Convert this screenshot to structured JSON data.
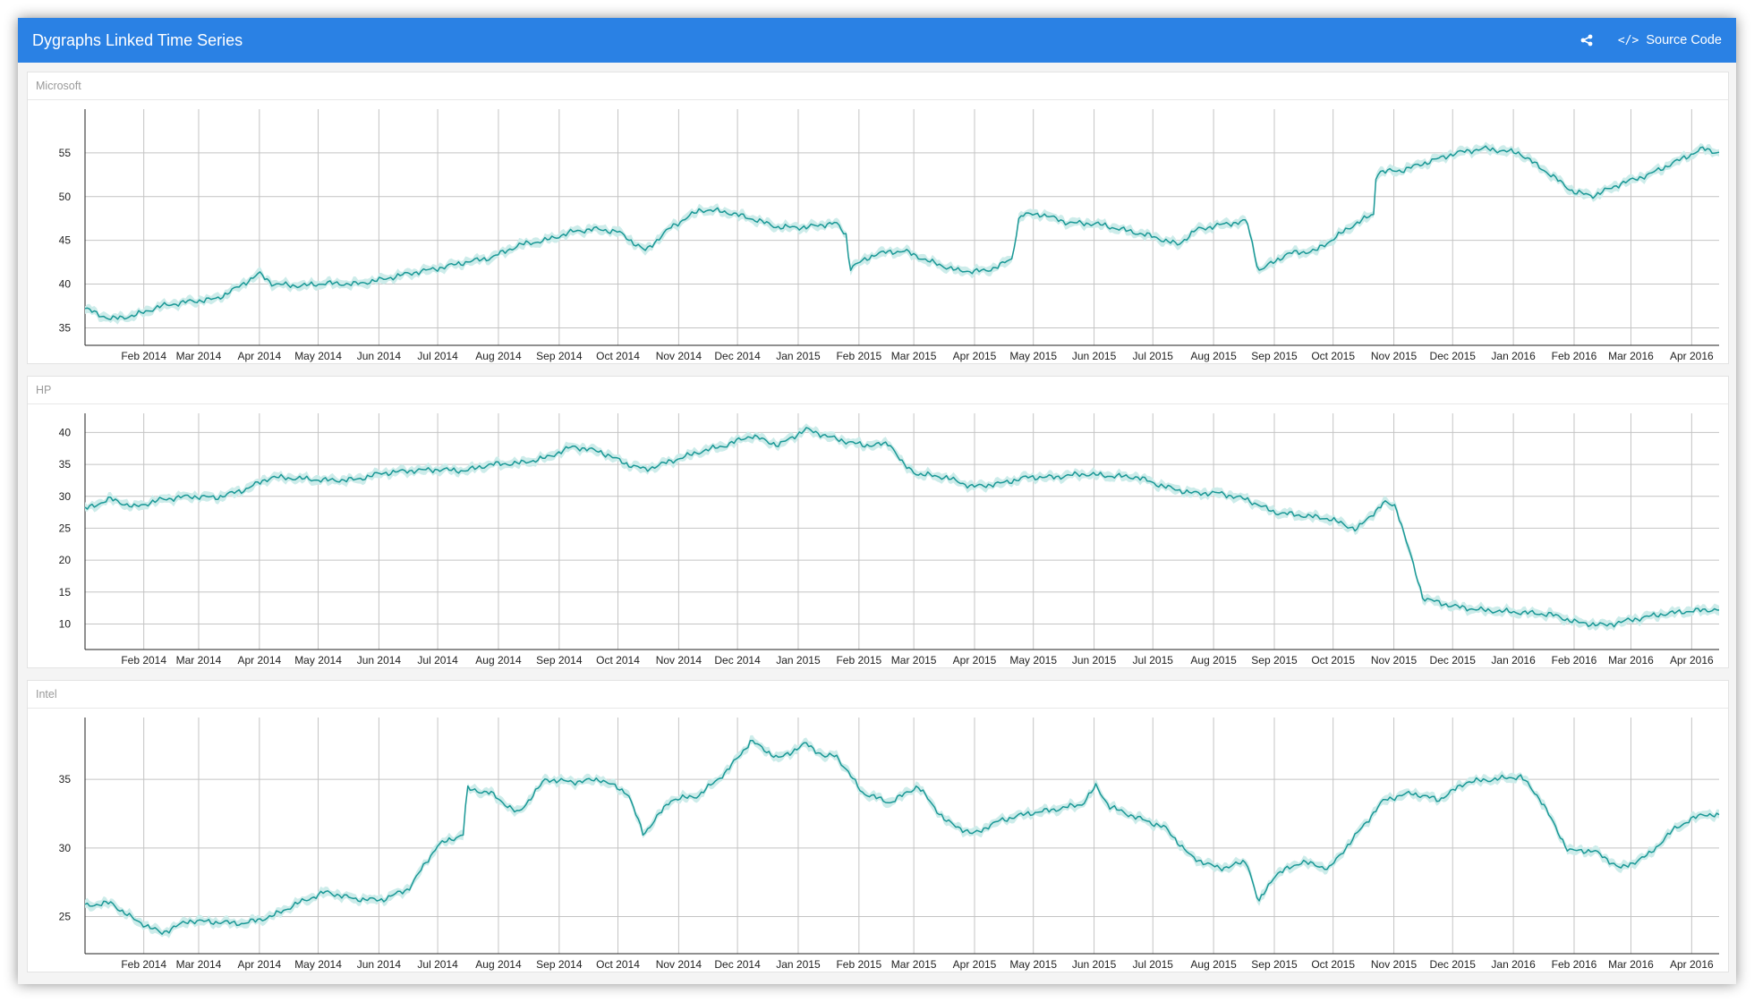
{
  "header": {
    "title": "Dygraphs Linked Time Series",
    "share_icon": "share-icon",
    "source_code_label": "Source Code"
  },
  "colors": {
    "navbar": "#2a81e4",
    "series": "#1a9896",
    "band": "#cdecea"
  },
  "chart_data": [
    {
      "type": "line",
      "title": "Microsoft",
      "xlabel": "",
      "ylabel": "",
      "x_tick_labels": [
        "Feb 2014",
        "Mar 2014",
        "Apr 2014",
        "May 2014",
        "Jun 2014",
        "Jul 2014",
        "Aug 2014",
        "Sep 2014",
        "Oct 2014",
        "Nov 2014",
        "Dec 2014",
        "Jan 2015",
        "Feb 2015",
        "Mar 2015",
        "Apr 2015",
        "May 2015",
        "Jun 2015",
        "Jul 2015",
        "Aug 2015",
        "Sep 2015",
        "Oct 2015",
        "Nov 2015",
        "Dec 2015",
        "Jan 2016",
        "Feb 2016",
        "Mar 2016",
        "Apr 2016"
      ],
      "xlim": [
        "2014-01-02",
        "2016-04-15"
      ],
      "ylim": [
        33,
        60
      ],
      "y_ticks": [
        35,
        40,
        45,
        50,
        55
      ],
      "grid": true,
      "series": [
        {
          "x": [
            "2014-01-02",
            "2014-01-15",
            "2014-01-27",
            "2014-02-10",
            "2014-02-24",
            "2014-03-10",
            "2014-03-20",
            "2014-04-01",
            "2014-04-08",
            "2014-04-22",
            "2014-05-05",
            "2014-05-20",
            "2014-06-02",
            "2014-06-16",
            "2014-07-01",
            "2014-07-15",
            "2014-07-28",
            "2014-08-12",
            "2014-08-25",
            "2014-09-08",
            "2014-09-19",
            "2014-10-01",
            "2014-10-15",
            "2014-10-28",
            "2014-11-12",
            "2014-11-24",
            "2014-12-08",
            "2014-12-22",
            "2015-01-05",
            "2015-01-20",
            "2015-01-26",
            "2015-01-27",
            "2015-02-10",
            "2015-02-24",
            "2015-03-10",
            "2015-03-24",
            "2015-04-07",
            "2015-04-20",
            "2015-04-24",
            "2015-05-05",
            "2015-05-19",
            "2015-06-02",
            "2015-06-16",
            "2015-06-30",
            "2015-07-14",
            "2015-07-23",
            "2015-08-05",
            "2015-08-18",
            "2015-08-24",
            "2015-09-08",
            "2015-09-22",
            "2015-10-13",
            "2015-10-22",
            "2015-10-23",
            "2015-11-05",
            "2015-11-19",
            "2015-12-03",
            "2015-12-17",
            "2016-01-04",
            "2016-01-20",
            "2016-02-01",
            "2016-02-11",
            "2016-02-25",
            "2016-03-10",
            "2016-03-24",
            "2016-04-07",
            "2016-04-15"
          ],
          "values": [
            37.2,
            36.0,
            36.4,
            37.5,
            38.0,
            38.3,
            39.5,
            41.2,
            40.0,
            39.8,
            40.1,
            40.0,
            40.5,
            41.2,
            41.8,
            42.5,
            43.0,
            44.5,
            45.0,
            46.0,
            46.3,
            46.0,
            43.8,
            46.5,
            48.5,
            48.3,
            47.5,
            46.5,
            46.5,
            47.0,
            45.5,
            41.8,
            43.5,
            43.8,
            42.5,
            41.5,
            41.5,
            42.8,
            47.9,
            48.0,
            47.0,
            46.9,
            46.2,
            45.5,
            44.5,
            46.2,
            46.8,
            47.2,
            41.5,
            43.5,
            43.8,
            47.0,
            48.0,
            52.8,
            53.0,
            54.0,
            55.0,
            55.5,
            55.0,
            52.5,
            50.5,
            50.1,
            51.5,
            52.5,
            54.0,
            55.5,
            55.0
          ]
        }
      ]
    },
    {
      "type": "line",
      "title": "HP",
      "xlabel": "",
      "ylabel": "",
      "x_tick_labels": [
        "Feb 2014",
        "Mar 2014",
        "Apr 2014",
        "May 2014",
        "Jun 2014",
        "Jul 2014",
        "Aug 2014",
        "Sep 2014",
        "Oct 2014",
        "Nov 2014",
        "Dec 2014",
        "Jan 2015",
        "Feb 2015",
        "Mar 2015",
        "Apr 2015",
        "May 2015",
        "Jun 2015",
        "Jul 2015",
        "Aug 2015",
        "Sep 2015",
        "Oct 2015",
        "Nov 2015",
        "Dec 2015",
        "Jan 2016",
        "Feb 2016",
        "Mar 2016",
        "Apr 2016"
      ],
      "xlim": [
        "2014-01-02",
        "2016-04-15"
      ],
      "ylim": [
        6,
        43
      ],
      "y_ticks": [
        10,
        15,
        20,
        25,
        30,
        35,
        40
      ],
      "grid": true,
      "series": [
        {
          "x": [
            "2014-01-02",
            "2014-01-15",
            "2014-01-27",
            "2014-02-10",
            "2014-02-24",
            "2014-03-10",
            "2014-03-24",
            "2014-04-07",
            "2014-04-21",
            "2014-05-05",
            "2014-05-20",
            "2014-06-02",
            "2014-06-16",
            "2014-07-01",
            "2014-07-15",
            "2014-07-28",
            "2014-08-12",
            "2014-08-25",
            "2014-09-08",
            "2014-09-22",
            "2014-10-06",
            "2014-10-15",
            "2014-10-28",
            "2014-11-12",
            "2014-11-25",
            "2014-12-08",
            "2014-12-22",
            "2015-01-05",
            "2015-01-20",
            "2015-02-03",
            "2015-02-17",
            "2015-02-24",
            "2015-03-03",
            "2015-03-17",
            "2015-03-31",
            "2015-04-14",
            "2015-04-28",
            "2015-05-12",
            "2015-05-26",
            "2015-06-09",
            "2015-06-23",
            "2015-07-07",
            "2015-07-21",
            "2015-08-04",
            "2015-08-18",
            "2015-09-01",
            "2015-09-15",
            "2015-09-29",
            "2015-10-13",
            "2015-10-27",
            "2015-11-02",
            "2015-11-16",
            "2015-12-01",
            "2015-12-15",
            "2016-01-05",
            "2016-01-20",
            "2016-02-03",
            "2016-02-17",
            "2016-03-02",
            "2016-03-16",
            "2016-03-30",
            "2016-04-15"
          ],
          "values": [
            28.0,
            29.6,
            28.3,
            29.5,
            30.0,
            29.8,
            31.0,
            33.0,
            32.8,
            32.5,
            32.6,
            33.6,
            34.0,
            34.2,
            34.0,
            35.0,
            35.2,
            36.0,
            37.8,
            37.0,
            35.0,
            34.2,
            35.5,
            37.0,
            38.0,
            39.5,
            38.0,
            40.5,
            39.0,
            38.0,
            38.2,
            34.8,
            33.5,
            33.0,
            31.5,
            32.0,
            33.0,
            33.0,
            33.5,
            33.2,
            33.0,
            31.5,
            30.5,
            30.5,
            29.5,
            27.5,
            27.0,
            26.5,
            24.8,
            29.0,
            28.5,
            14.0,
            12.8,
            12.2,
            11.8,
            11.5,
            10.2,
            9.8,
            10.7,
            11.5,
            12.0,
            12.3
          ]
        }
      ]
    },
    {
      "type": "line",
      "title": "Intel",
      "xlabel": "",
      "ylabel": "",
      "x_tick_labels": [
        "Feb 2014",
        "Mar 2014",
        "Apr 2014",
        "May 2014",
        "Jun 2014",
        "Jul 2014",
        "Aug 2014",
        "Sep 2014",
        "Oct 2014",
        "Nov 2014",
        "Dec 2014",
        "Jan 2015",
        "Feb 2015",
        "Mar 2015",
        "Apr 2015",
        "May 2015",
        "Jun 2015",
        "Jul 2015",
        "Aug 2015",
        "Sep 2015",
        "Oct 2015",
        "Nov 2015",
        "Dec 2015",
        "Jan 2016",
        "Feb 2016",
        "Mar 2016",
        "Apr 2016"
      ],
      "xlim": [
        "2014-01-02",
        "2016-04-15"
      ],
      "ylim": [
        22.3,
        39.5
      ],
      "y_ticks": [
        25,
        30,
        35
      ],
      "grid": true,
      "series": [
        {
          "x": [
            "2014-01-02",
            "2014-01-15",
            "2014-01-27",
            "2014-02-10",
            "2014-02-24",
            "2014-03-10",
            "2014-03-24",
            "2014-04-07",
            "2014-04-21",
            "2014-05-05",
            "2014-05-19",
            "2014-06-02",
            "2014-06-16",
            "2014-07-01",
            "2014-07-14",
            "2014-07-16",
            "2014-07-28",
            "2014-08-11",
            "2014-08-25",
            "2014-09-08",
            "2014-09-22",
            "2014-10-06",
            "2014-10-14",
            "2014-10-28",
            "2014-11-11",
            "2014-11-25",
            "2014-12-08",
            "2014-12-22",
            "2015-01-05",
            "2015-01-15",
            "2015-01-20",
            "2015-02-03",
            "2015-02-17",
            "2015-03-03",
            "2015-03-17",
            "2015-03-31",
            "2015-04-14",
            "2015-04-28",
            "2015-05-12",
            "2015-05-26",
            "2015-06-02",
            "2015-06-09",
            "2015-06-23",
            "2015-07-07",
            "2015-07-21",
            "2015-08-04",
            "2015-08-18",
            "2015-08-24",
            "2015-09-01",
            "2015-09-15",
            "2015-09-29",
            "2015-10-13",
            "2015-10-27",
            "2015-11-10",
            "2015-11-24",
            "2015-12-08",
            "2015-12-22",
            "2016-01-05",
            "2016-01-15",
            "2016-01-29",
            "2016-02-11",
            "2016-02-25",
            "2016-03-10",
            "2016-03-24",
            "2016-04-07",
            "2016-04-15"
          ],
          "values": [
            25.8,
            26.0,
            24.8,
            23.8,
            24.7,
            24.6,
            24.5,
            25.0,
            26.0,
            26.8,
            26.3,
            26.2,
            27.0,
            30.2,
            31.0,
            34.3,
            34.0,
            32.5,
            35.0,
            34.8,
            35.0,
            34.0,
            31.0,
            33.5,
            33.8,
            35.5,
            37.8,
            36.5,
            37.6,
            36.6,
            36.8,
            34.0,
            33.3,
            34.5,
            32.0,
            31.0,
            32.0,
            32.5,
            32.8,
            33.2,
            34.5,
            33.0,
            32.2,
            31.5,
            29.3,
            28.5,
            29.0,
            26.0,
            28.0,
            29.0,
            28.5,
            31.0,
            33.5,
            34.0,
            33.5,
            34.8,
            35.0,
            35.2,
            33.5,
            29.8,
            29.8,
            28.5,
            29.5,
            31.5,
            32.5,
            32.3
          ]
        }
      ]
    }
  ]
}
